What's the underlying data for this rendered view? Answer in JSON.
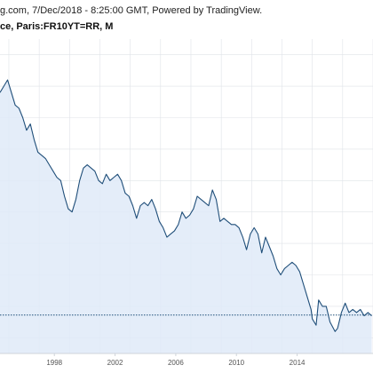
{
  "header": {
    "source_line": "g.com, 7/Dec/2018 - 8:25:00 GMT, Powered by TradingView.",
    "instrument_line": "ce, Paris:FR10YT=RR, M"
  },
  "colors": {
    "line": "#1f4e79",
    "fill": "#dfeaf8",
    "grid": "#dfe3e8",
    "axis": "#cfd4da",
    "tick_text": "#555555",
    "current_line": "#1f4e79"
  },
  "chart_data": {
    "type": "area",
    "x_axis_type": "date",
    "tick_labels": [
      "1998",
      "2002",
      "2006",
      "2010",
      "2014"
    ],
    "xlim": [
      "1994-06",
      "2019-01"
    ],
    "ylim": [
      -0.5,
      9.5
    ],
    "grid": true,
    "current_value_line": 0.72,
    "x": [
      "1994-06",
      "1994-09",
      "1994-12",
      "1995-03",
      "1995-06",
      "1995-09",
      "1995-12",
      "1996-03",
      "1996-06",
      "1996-09",
      "1996-12",
      "1997-03",
      "1997-06",
      "1997-09",
      "1997-12",
      "1998-03",
      "1998-06",
      "1998-09",
      "1998-12",
      "1999-03",
      "1999-06",
      "1999-09",
      "1999-12",
      "2000-03",
      "2000-06",
      "2000-09",
      "2000-12",
      "2001-03",
      "2001-06",
      "2001-09",
      "2001-12",
      "2002-03",
      "2002-06",
      "2002-09",
      "2002-12",
      "2003-03",
      "2003-06",
      "2003-09",
      "2003-12",
      "2004-03",
      "2004-06",
      "2004-09",
      "2004-12",
      "2005-03",
      "2005-06",
      "2005-09",
      "2005-12",
      "2006-03",
      "2006-06",
      "2006-09",
      "2006-12",
      "2007-03",
      "2007-06",
      "2007-09",
      "2007-12",
      "2008-03",
      "2008-06",
      "2008-09",
      "2008-12",
      "2009-03",
      "2009-06",
      "2009-09",
      "2009-12",
      "2010-03",
      "2010-06",
      "2010-09",
      "2010-12",
      "2011-03",
      "2011-06",
      "2011-09",
      "2011-12",
      "2012-03",
      "2012-06",
      "2012-09",
      "2012-12",
      "2013-03",
      "2013-06",
      "2013-09",
      "2013-12",
      "2014-03",
      "2014-06",
      "2014-09",
      "2014-12",
      "2015-01",
      "2015-04",
      "2015-06",
      "2015-09",
      "2015-12",
      "2016-03",
      "2016-07",
      "2016-09",
      "2016-12",
      "2017-03",
      "2017-06",
      "2017-09",
      "2017-12",
      "2018-03",
      "2018-06",
      "2018-09",
      "2018-12"
    ],
    "series": [
      {
        "values": [
          7.8,
          8.0,
          8.2,
          7.8,
          7.4,
          7.3,
          7.0,
          6.6,
          6.8,
          6.3,
          5.9,
          5.8,
          5.7,
          5.5,
          5.3,
          5.1,
          5.0,
          4.5,
          4.1,
          4.0,
          4.4,
          5.0,
          5.4,
          5.5,
          5.4,
          5.3,
          5.0,
          4.9,
          5.2,
          5.0,
          5.1,
          5.2,
          5.0,
          4.6,
          4.5,
          4.2,
          3.8,
          4.2,
          4.3,
          4.2,
          4.4,
          4.1,
          3.7,
          3.5,
          3.2,
          3.3,
          3.4,
          3.6,
          4.0,
          3.8,
          3.9,
          4.1,
          4.5,
          4.4,
          4.3,
          4.2,
          4.7,
          4.4,
          3.7,
          3.8,
          3.7,
          3.6,
          3.6,
          3.5,
          3.2,
          2.8,
          3.3,
          3.5,
          3.3,
          2.7,
          3.2,
          2.9,
          2.6,
          2.2,
          2.0,
          2.2,
          2.3,
          2.4,
          2.3,
          2.1,
          1.7,
          1.3,
          0.9,
          0.6,
          0.4,
          1.2,
          1.0,
          1.0,
          0.5,
          0.2,
          0.3,
          0.8,
          1.1,
          0.8,
          0.9,
          0.8,
          0.9,
          0.7,
          0.8,
          0.7
        ]
      }
    ]
  }
}
